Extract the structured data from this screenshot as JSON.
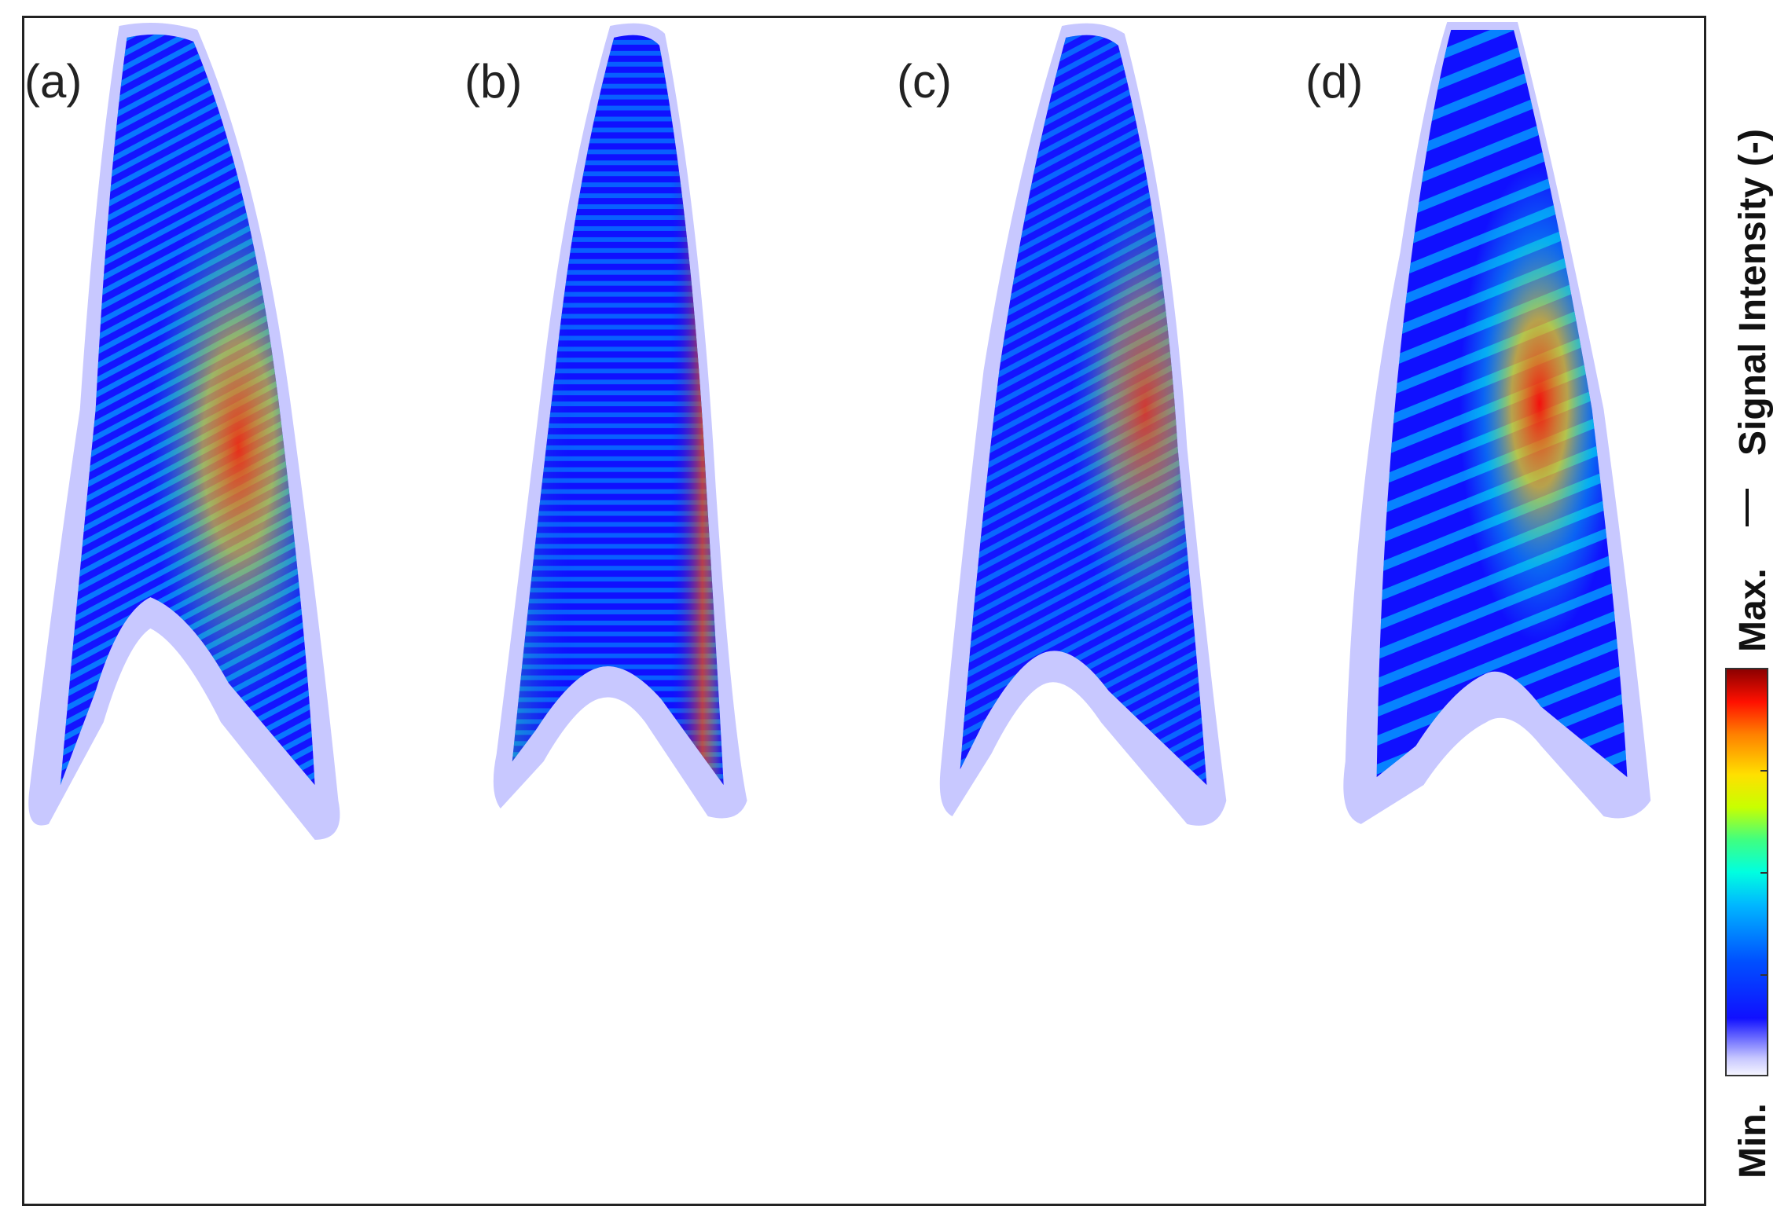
{
  "panels": [
    {
      "label": "(a)"
    },
    {
      "label": "(b)"
    },
    {
      "label": "(c)"
    },
    {
      "label": "(d)"
    }
  ],
  "colorbar": {
    "min_label": "Min.",
    "max_label": "Max.",
    "quantity_label": "Signal Intensity (-)",
    "colormap": "jet",
    "colors": [
      "#f4f4ff",
      "#c8c8ff",
      "#1010ff",
      "#0050ff",
      "#00b8ff",
      "#00ffe0",
      "#40ff80",
      "#c8ff00",
      "#ffe000",
      "#ff8000",
      "#ff1000",
      "#8c0000"
    ]
  }
}
